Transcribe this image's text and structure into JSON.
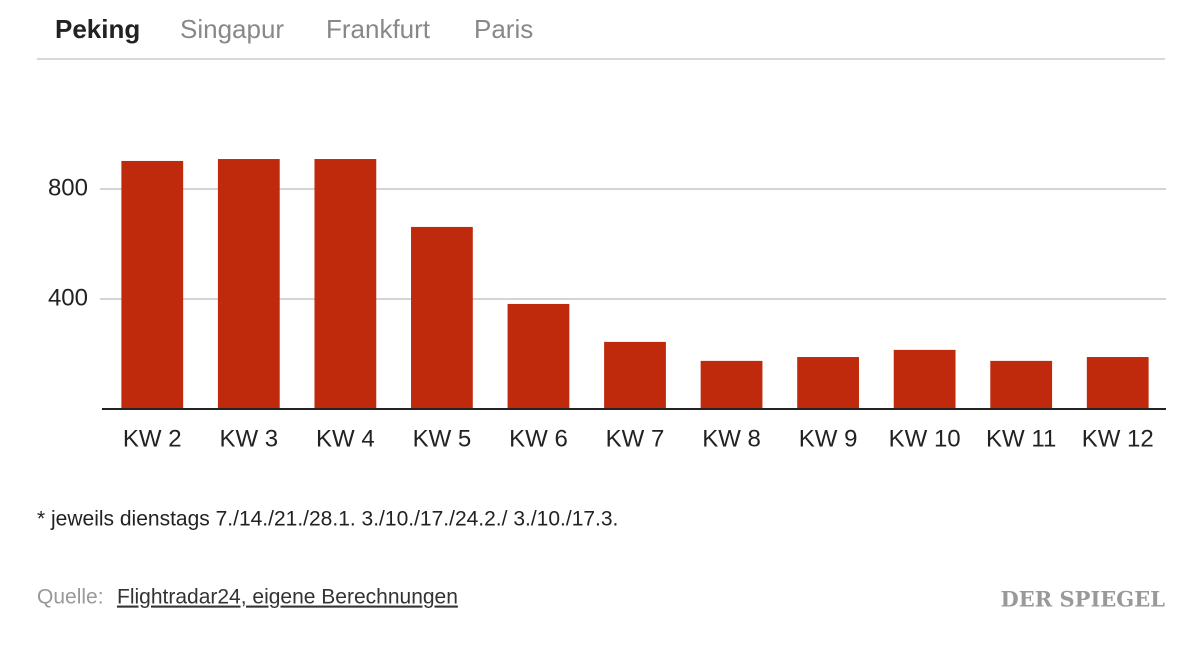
{
  "tabs": [
    "Peking",
    "Singapur",
    "Frankfurt",
    "Paris"
  ],
  "chart_data": {
    "type": "bar",
    "categories": [
      "KW 2",
      "KW 3",
      "KW 4",
      "KW 5",
      "KW 6",
      "KW 7",
      "KW 8",
      "KW 9",
      "KW 10",
      "KW 11",
      "KW 12"
    ],
    "values": [
      902,
      909,
      909,
      662,
      382,
      244,
      175,
      189,
      215,
      175,
      189
    ],
    "color": "#c02a0c",
    "ylim": [
      0,
      1000
    ],
    "yticks": [
      400,
      800
    ],
    "grid": true
  },
  "footnote": "* jeweils dienstags 7./14./21./28.1. 3./10./17./24.2./ 3./10./17.3.",
  "source": {
    "label": "Quelle:",
    "text": "Flightradar24, eigene Berechnungen"
  },
  "logo": "DER SPIEGEL"
}
